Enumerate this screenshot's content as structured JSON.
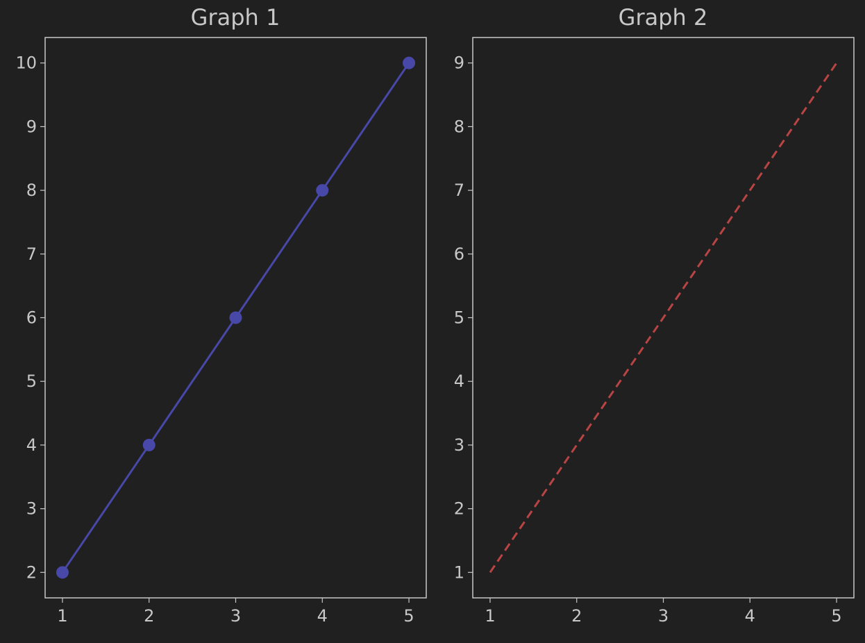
{
  "chart_data": [
    {
      "type": "line",
      "title": "Graph 1",
      "xlabel": "",
      "ylabel": "",
      "x": [
        1,
        2,
        3,
        4,
        5
      ],
      "series": [
        {
          "values": [
            2,
            4,
            6,
            8,
            10
          ],
          "color": "#4848a8",
          "line_style": "solid",
          "marker": "circle"
        }
      ],
      "xlim": [
        0.8,
        5.2
      ],
      "ylim": [
        1.6,
        10.4
      ],
      "xticks": [
        1,
        2,
        3,
        4,
        5
      ],
      "yticks": [
        2,
        3,
        4,
        5,
        6,
        7,
        8,
        9,
        10
      ],
      "grid": false
    },
    {
      "type": "line",
      "title": "Graph 2",
      "xlabel": "",
      "ylabel": "",
      "x": [
        1,
        2,
        3,
        4,
        5
      ],
      "series": [
        {
          "values": [
            1,
            3,
            5,
            7,
            9
          ],
          "color": "#b84444",
          "line_style": "dashed",
          "marker": "none"
        }
      ],
      "xlim": [
        0.8,
        5.2
      ],
      "ylim": [
        0.6,
        9.4
      ],
      "xticks": [
        1,
        2,
        3,
        4,
        5
      ],
      "yticks": [
        1,
        2,
        3,
        4,
        5,
        6,
        7,
        8,
        9
      ],
      "grid": false
    }
  ],
  "colors": {
    "background": "#202020",
    "axes": "#c8c8c8",
    "text": "#c8c8c8"
  }
}
